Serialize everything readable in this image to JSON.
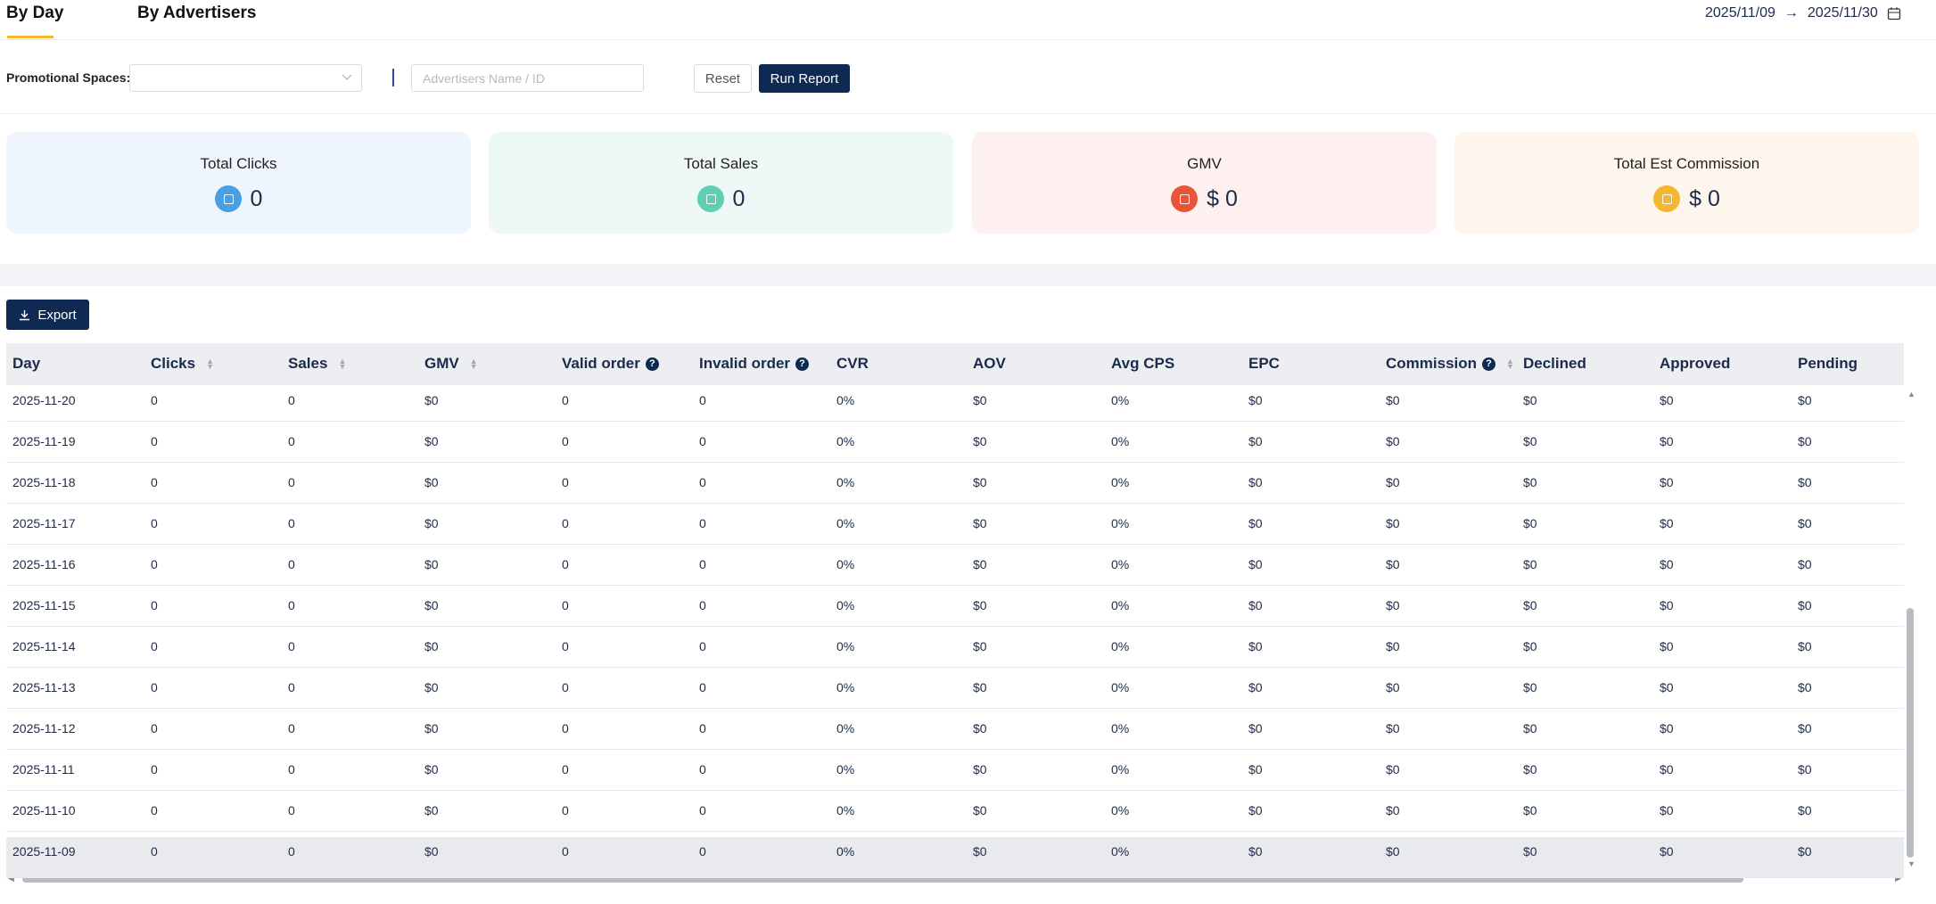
{
  "tabs": [
    "By Day",
    "By Advertisers"
  ],
  "date_range": {
    "start": "2025/11/09",
    "end": "2025/11/30"
  },
  "filters": {
    "promo_label": "Promotional Spaces:",
    "advertiser_placeholder": "Advertisers Name / ID",
    "reset": "Reset",
    "run": "Run Report"
  },
  "stats": [
    {
      "title": "Total Clicks",
      "value": "0"
    },
    {
      "title": "Total Sales",
      "value": "0"
    },
    {
      "title": "GMV",
      "value": "$ 0"
    },
    {
      "title": "Total Est Commission",
      "value": "$ 0"
    }
  ],
  "export": "Export",
  "table": {
    "headers": [
      "Day",
      "Clicks",
      "Sales",
      "GMV",
      "Valid order",
      "Invalid order",
      "CVR",
      "AOV",
      "Avg CPS",
      "EPC",
      "Commission",
      "Declined",
      "Approved",
      "Pending"
    ],
    "rows": [
      [
        "2025-11-20",
        "0",
        "0",
        "$0",
        "0",
        "0",
        "0%",
        "$0",
        "0%",
        "$0",
        "$0",
        "$0",
        "$0",
        "$0"
      ],
      [
        "2025-11-19",
        "0",
        "0",
        "$0",
        "0",
        "0",
        "0%",
        "$0",
        "0%",
        "$0",
        "$0",
        "$0",
        "$0",
        "$0"
      ],
      [
        "2025-11-18",
        "0",
        "0",
        "$0",
        "0",
        "0",
        "0%",
        "$0",
        "0%",
        "$0",
        "$0",
        "$0",
        "$0",
        "$0"
      ],
      [
        "2025-11-17",
        "0",
        "0",
        "$0",
        "0",
        "0",
        "0%",
        "$0",
        "0%",
        "$0",
        "$0",
        "$0",
        "$0",
        "$0"
      ],
      [
        "2025-11-16",
        "0",
        "0",
        "$0",
        "0",
        "0",
        "0%",
        "$0",
        "0%",
        "$0",
        "$0",
        "$0",
        "$0",
        "$0"
      ],
      [
        "2025-11-15",
        "0",
        "0",
        "$0",
        "0",
        "0",
        "0%",
        "$0",
        "0%",
        "$0",
        "$0",
        "$0",
        "$0",
        "$0"
      ],
      [
        "2025-11-14",
        "0",
        "0",
        "$0",
        "0",
        "0",
        "0%",
        "$0",
        "0%",
        "$0",
        "$0",
        "$0",
        "$0",
        "$0"
      ],
      [
        "2025-11-13",
        "0",
        "0",
        "$0",
        "0",
        "0",
        "0%",
        "$0",
        "0%",
        "$0",
        "$0",
        "$0",
        "$0",
        "$0"
      ],
      [
        "2025-11-12",
        "0",
        "0",
        "$0",
        "0",
        "0",
        "0%",
        "$0",
        "0%",
        "$0",
        "$0",
        "$0",
        "$0",
        "$0"
      ],
      [
        "2025-11-11",
        "0",
        "0",
        "$0",
        "0",
        "0",
        "0%",
        "$0",
        "0%",
        "$0",
        "$0",
        "$0",
        "$0",
        "$0"
      ],
      [
        "2025-11-10",
        "0",
        "0",
        "$0",
        "0",
        "0",
        "0%",
        "$0",
        "0%",
        "$0",
        "$0",
        "$0",
        "$0",
        "$0"
      ],
      [
        "2025-11-09",
        "0",
        "0",
        "$0",
        "0",
        "0",
        "0%",
        "$0",
        "0%",
        "$0",
        "$0",
        "$0",
        "$0",
        "$0"
      ]
    ]
  }
}
